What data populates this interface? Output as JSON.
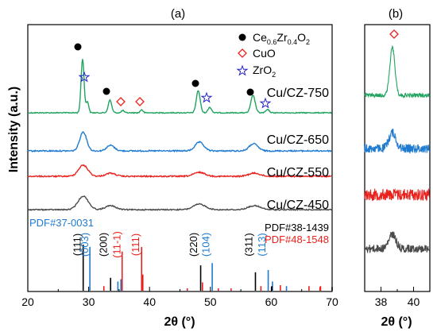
{
  "panels": {
    "a": {
      "label": "(a)"
    },
    "b": {
      "label": "(b)"
    }
  },
  "axes": {
    "ylabel": "Intensity (a.u.)",
    "xlabel_a": "2θ (°)",
    "xlabel_b": "2θ (°)"
  },
  "legend": {
    "items": [
      {
        "marker": "filled-circle",
        "text_main": "Ce",
        "sub1": "0.6",
        "text2": "Zr",
        "sub2": "0.4",
        "text3": "O",
        "sub3": "2",
        "color": "#000000"
      },
      {
        "marker": "open-diamond",
        "text": "CuO",
        "color": "#e8211d"
      },
      {
        "marker": "open-star",
        "text_main": "ZrO",
        "sub1": "2",
        "color": "#2323c8"
      }
    ]
  },
  "sample_labels": [
    "Cu/CZ-750",
    "Cu/CZ-650",
    "Cu/CZ-550",
    "Cu/CZ-450"
  ],
  "pdf_labels": [
    {
      "text": "PDF#37-0031",
      "color": "#1f7bd0"
    },
    {
      "text": "PDF#38-1439",
      "color": "#000000"
    },
    {
      "text": "PDF#48-1548",
      "color": "#e8211d"
    }
  ],
  "hkl_labels": [
    {
      "text": "(111)",
      "x": 29.1,
      "color": "#000000"
    },
    {
      "text": "(003)",
      "x": 30.3,
      "color": "#1f7bd0"
    },
    {
      "text": "(200)",
      "x": 33.4,
      "color": "#000000"
    },
    {
      "text": "(11-1)",
      "x": 35.6,
      "color": "#e8211d"
    },
    {
      "text": "(111)",
      "x": 38.7,
      "color": "#e8211d"
    },
    {
      "text": "(220)",
      "x": 48.2,
      "color": "#000000"
    },
    {
      "text": "(104)",
      "x": 50.2,
      "color": "#1f7bd0"
    },
    {
      "text": "(311)",
      "x": 57.3,
      "color": "#000000"
    },
    {
      "text": "(113)",
      "x": 59.4,
      "color": "#1f7bd0"
    }
  ],
  "chart_data": [
    {
      "type": "line",
      "panel": "a",
      "xlabel": "2θ (°)",
      "ylabel": "Intensity (a.u.)",
      "xlim": [
        20,
        70
      ],
      "xticks": [
        20,
        30,
        40,
        50,
        60,
        70
      ],
      "series": [
        {
          "name": "Cu/CZ-750",
          "color": "#21a35f",
          "peaks": [
            [
              29.0,
              3.4,
              0.35
            ],
            [
              29.8,
              0.7,
              0.3
            ],
            [
              33.5,
              0.8,
              0.4
            ],
            [
              35.6,
              0.15,
              0.3
            ],
            [
              38.7,
              0.2,
              0.3
            ],
            [
              48.0,
              1.4,
              0.45
            ],
            [
              49.9,
              0.35,
              0.4
            ],
            [
              57.0,
              1.1,
              0.5
            ],
            [
              59.4,
              0.2,
              0.4
            ]
          ]
        },
        {
          "name": "Cu/CZ-650",
          "color": "#1f7bd0",
          "peaks": [
            [
              29.1,
              1.2,
              0.8
            ],
            [
              33.6,
              0.35,
              0.9
            ],
            [
              48.2,
              0.55,
              1.0
            ],
            [
              57.1,
              0.45,
              1.0
            ]
          ]
        },
        {
          "name": "Cu/CZ-550",
          "color": "#e8211d",
          "peaks": [
            [
              29.1,
              0.7,
              1.1
            ],
            [
              33.6,
              0.2,
              1.1
            ],
            [
              48.2,
              0.25,
              1.3
            ],
            [
              57.2,
              0.2,
              1.3
            ]
          ]
        },
        {
          "name": "Cu/CZ-450",
          "color": "#4a4a4a",
          "peaks": [
            [
              29.1,
              0.85,
              1.2
            ],
            [
              33.6,
              0.25,
              1.2
            ],
            [
              48.2,
              0.35,
              1.4
            ],
            [
              57.2,
              0.25,
              1.4
            ]
          ]
        }
      ],
      "reference_lines": [
        {
          "name": "PDF#37-0031",
          "color": "#1f7bd0",
          "positions": [
            [
              30.2,
              0.95
            ],
            [
              34.8,
              0.2
            ],
            [
              35.3,
              0.25
            ],
            [
              50.3,
              0.6
            ],
            [
              59.5,
              0.45
            ],
            [
              60.2,
              0.2
            ],
            [
              62.5,
              0.1
            ]
          ]
        },
        {
          "name": "PDF#38-1439",
          "color": "#000000",
          "positions": [
            [
              29.1,
              1.0
            ],
            [
              33.6,
              0.28
            ],
            [
              48.4,
              0.55
            ],
            [
              57.4,
              0.4
            ],
            [
              60.1,
              0.1
            ],
            [
              70.0,
              0.08
            ]
          ]
        },
        {
          "name": "PDF#48-1548",
          "color": "#e8211d",
          "positions": [
            [
              32.5,
              0.1
            ],
            [
              35.5,
              0.85
            ],
            [
              38.7,
              0.95
            ],
            [
              38.9,
              0.35
            ],
            [
              46.2,
              0.05
            ],
            [
              48.7,
              0.18
            ],
            [
              51.3,
              0.05
            ],
            [
              53.4,
              0.05
            ],
            [
              58.3,
              0.1
            ],
            [
              61.5,
              0.12
            ],
            [
              66.2,
              0.1
            ],
            [
              68.0,
              0.08
            ],
            [
              68.1,
              0.1
            ]
          ]
        }
      ]
    },
    {
      "type": "line",
      "panel": "b",
      "xlabel": "2θ (°)",
      "xlim": [
        37,
        41
      ],
      "xticks": [
        38,
        40
      ],
      "series": [
        {
          "name": "Cu/CZ-750",
          "color": "#21a35f",
          "peaks": [
            [
              38.7,
              3.0,
              0.22
            ]
          ]
        },
        {
          "name": "Cu/CZ-650",
          "color": "#1f7bd0",
          "peaks": [
            [
              38.7,
              1.0,
              0.3
            ]
          ]
        },
        {
          "name": "Cu/CZ-550",
          "color": "#e8211d",
          "peaks": []
        },
        {
          "name": "Cu/CZ-450",
          "color": "#4a4a4a",
          "peaks": [
            [
              38.7,
              0.9,
              0.3
            ]
          ]
        }
      ],
      "markers": [
        {
          "x": 38.7,
          "symbol": "open-diamond",
          "color": "#e8211d"
        }
      ]
    }
  ]
}
